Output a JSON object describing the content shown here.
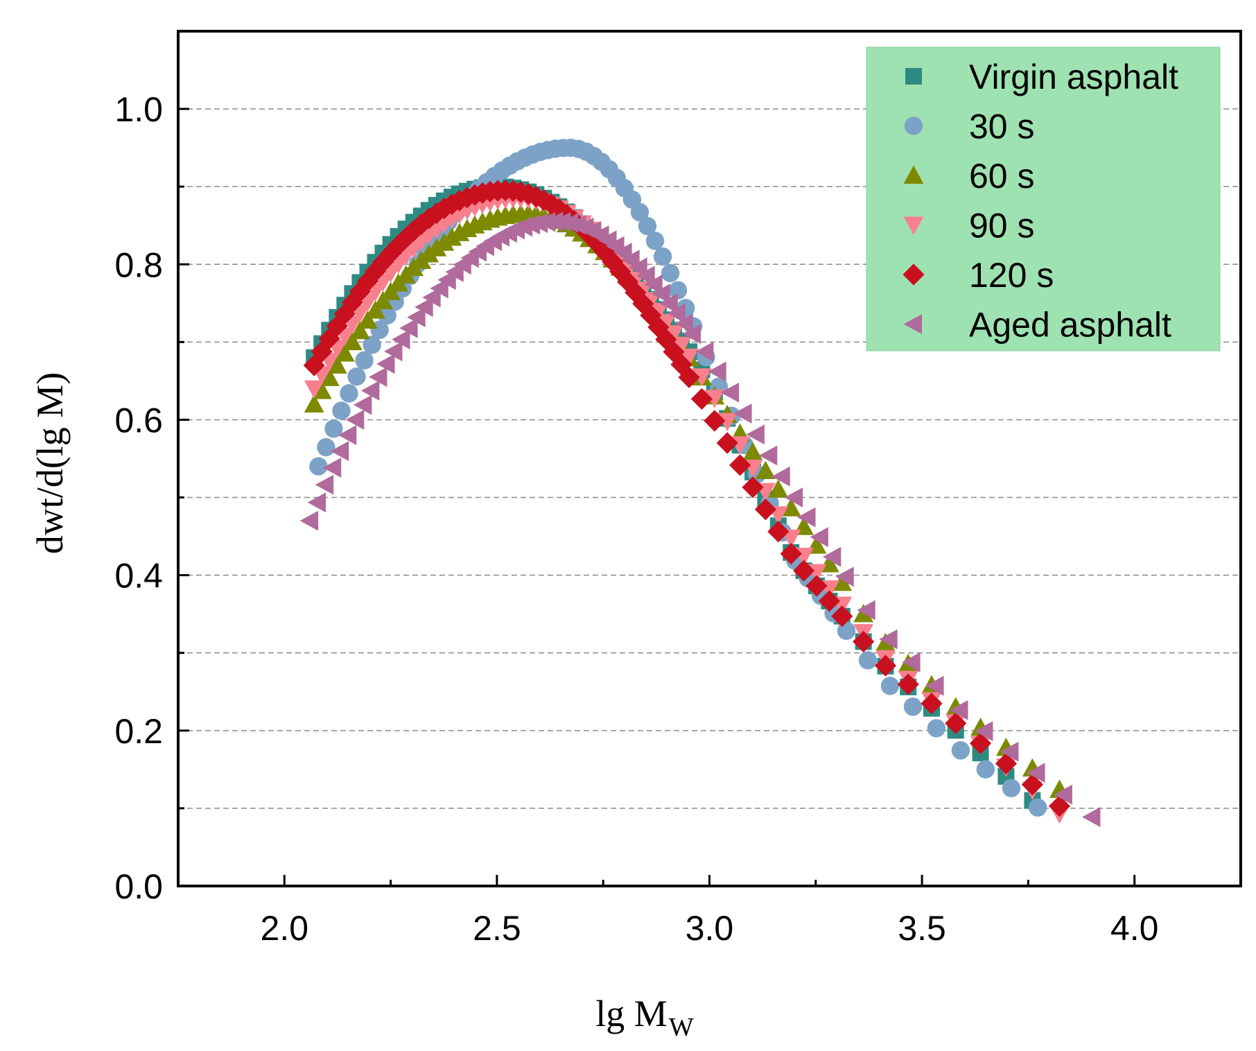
{
  "chart_data": {
    "type": "scatter",
    "xlabel": "lg M",
    "xlabel_sub": "W",
    "ylabel": "dwt/d(lg M)",
    "xlim": [
      1.75,
      4.25
    ],
    "ylim": [
      0.0,
      1.1
    ],
    "xticks": [
      2.0,
      2.5,
      3.0,
      3.5,
      4.0
    ],
    "xtick_labels": [
      "2.0",
      "2.5",
      "3.0",
      "3.5",
      "4.0"
    ],
    "yticks": [
      0.0,
      0.2,
      0.4,
      0.6,
      0.8,
      1.0
    ],
    "ytick_labels": [
      "0.0",
      "0.2",
      "0.4",
      "0.6",
      "0.8",
      "1.0"
    ],
    "grid": "horizontal dashed",
    "legend_position": "top-right",
    "legend_background": "#9fe2b2",
    "series": [
      {
        "name": "Virgin asphalt",
        "marker": "square",
        "color": "#2e8b84",
        "curve": {
          "x_start": 2.07,
          "x_peak": 2.5,
          "y_peak": 0.9,
          "y_start": 0.68,
          "tail": [
            [
              3.0,
              0.65
            ],
            [
              3.2,
              0.42
            ],
            [
              3.4,
              0.29
            ],
            [
              3.6,
              0.19
            ],
            [
              3.8,
              0.09
            ]
          ]
        },
        "x_end": 3.8
      },
      {
        "name": "30 s",
        "marker": "circle",
        "color": "#7ca3c7",
        "curve": {
          "x_start": 2.08,
          "x_peak": 2.67,
          "y_peak": 0.95,
          "y_start": 0.54,
          "tail": [
            [
              3.0,
              0.67
            ],
            [
              3.2,
              0.42
            ],
            [
              3.4,
              0.27
            ],
            [
              3.6,
              0.17
            ],
            [
              3.8,
              0.09
            ]
          ]
        },
        "x_end": 3.8
      },
      {
        "name": "60 s",
        "marker": "triangle-up",
        "color": "#7d8a00",
        "curve": {
          "x_start": 2.07,
          "x_peak": 2.57,
          "y_peak": 0.865,
          "y_start": 0.62,
          "tail": [
            [
              3.0,
              0.64
            ],
            [
              3.2,
              0.48
            ],
            [
              3.4,
              0.32
            ],
            [
              3.6,
              0.22
            ],
            [
              3.88,
              0.1
            ]
          ]
        },
        "x_end": 3.88
      },
      {
        "name": "90 s",
        "marker": "triangle-down",
        "color": "#f8808d",
        "curve": {
          "x_start": 2.07,
          "x_peak": 2.55,
          "y_peak": 0.885,
          "y_start": 0.64,
          "tail": [
            [
              3.0,
              0.64
            ],
            [
              3.2,
              0.44
            ],
            [
              3.4,
              0.3
            ],
            [
              3.6,
              0.2
            ],
            [
              3.83,
              0.09
            ]
          ]
        },
        "x_end": 3.83
      },
      {
        "name": "120 s",
        "marker": "diamond",
        "color": "#c8101f",
        "curve": {
          "x_start": 2.07,
          "x_peak": 2.52,
          "y_peak": 0.895,
          "y_start": 0.67,
          "tail": [
            [
              3.0,
              0.61
            ],
            [
              3.2,
              0.42
            ],
            [
              3.4,
              0.29
            ],
            [
              3.6,
              0.2
            ],
            [
              3.83,
              0.1
            ]
          ]
        },
        "x_end": 3.83
      },
      {
        "name": "Aged asphalt",
        "marker": "triangle-left",
        "color": "#b06a9b",
        "curve": {
          "x_start": 2.06,
          "x_peak": 2.64,
          "y_peak": 0.855,
          "y_start": 0.47,
          "tail": [
            [
              3.0,
              0.68
            ],
            [
              3.2,
              0.5
            ],
            [
              3.4,
              0.33
            ],
            [
              3.6,
              0.22
            ],
            [
              3.92,
              0.08
            ]
          ]
        },
        "x_end": 3.92
      }
    ]
  }
}
